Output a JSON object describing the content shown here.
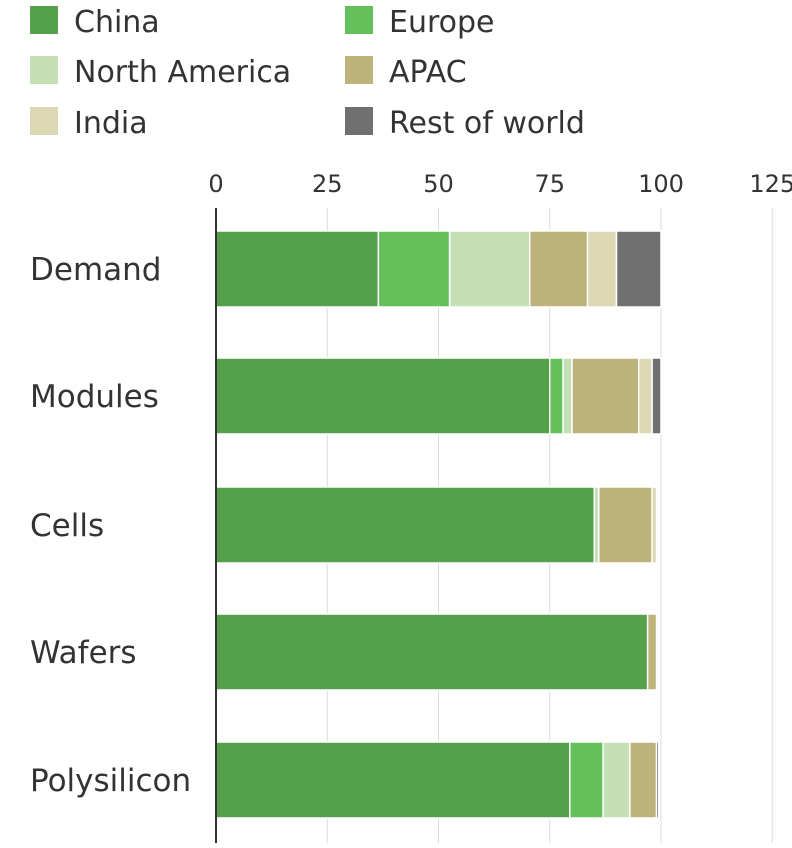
{
  "chart_data": {
    "type": "bar",
    "orientation": "horizontal",
    "stacked": true,
    "title": "",
    "xlabel": "",
    "ylabel": "",
    "xlim": [
      0,
      125
    ],
    "xticks": [
      0,
      25,
      50,
      75,
      100,
      125
    ],
    "grid": "vertical",
    "legend_position": "top-left",
    "categories": [
      "Demand",
      "Modules",
      "Cells",
      "Wafers",
      "Polysilicon"
    ],
    "series": [
      {
        "name": "China",
        "color": "#55a04b",
        "values": [
          36.5,
          75,
          85,
          97,
          79.5
        ]
      },
      {
        "name": "Europe",
        "color": "#63c05a",
        "values": [
          16,
          3,
          0,
          0,
          7.5
        ]
      },
      {
        "name": "North America",
        "color": "#c6e0b6",
        "values": [
          18,
          2,
          1,
          0,
          6
        ]
      },
      {
        "name": "APAC",
        "color": "#bfb37c",
        "values": [
          13,
          15,
          12,
          2,
          6
        ]
      },
      {
        "name": "India",
        "color": "#ddd8b4",
        "values": [
          6.5,
          3,
          1,
          0,
          0
        ]
      },
      {
        "name": "Rest of world",
        "color": "#707070",
        "values": [
          10,
          2,
          0,
          0,
          0.5
        ]
      }
    ]
  }
}
